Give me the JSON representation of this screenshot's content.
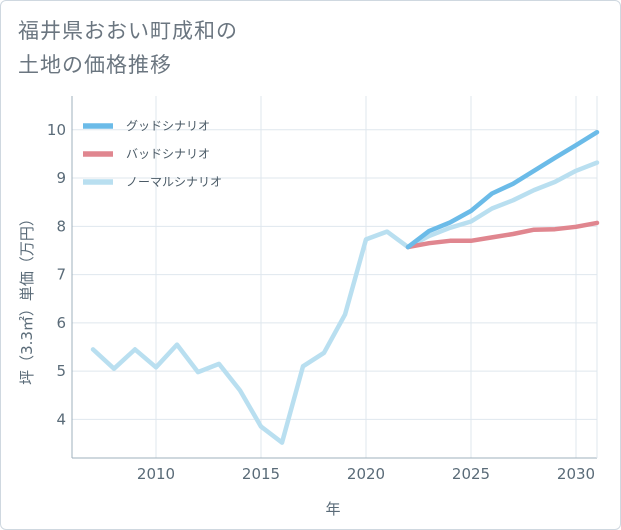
{
  "title_line1": "福井県おおい町成和の",
  "title_line2": "土地の価格推移",
  "chart_data": {
    "type": "line",
    "xlabel": "年",
    "ylabel": "坪（3.3㎡）単価（万円）",
    "xlim": [
      2006,
      2031
    ],
    "ylim": [
      3.2,
      10.7
    ],
    "xticks": [
      2010,
      2015,
      2020,
      2025,
      2030
    ],
    "yticks": [
      4,
      5,
      6,
      7,
      8,
      9,
      10
    ],
    "grid": true,
    "legend_position": "top-left",
    "series": [
      {
        "name": "グッドシナリオ",
        "color": "#6bbbe8",
        "x": [
          2022,
          2023,
          2024,
          2025,
          2026,
          2027,
          2028,
          2029,
          2030,
          2031
        ],
        "y": [
          7.57,
          7.9,
          8.08,
          8.32,
          8.68,
          8.88,
          9.15,
          9.42,
          9.68,
          9.95
        ]
      },
      {
        "name": "バッドシナリオ",
        "color": "#e0868f",
        "x": [
          2022,
          2023,
          2024,
          2025,
          2026,
          2027,
          2028,
          2029,
          2030,
          2031
        ],
        "y": [
          7.57,
          7.65,
          7.7,
          7.7,
          7.77,
          7.84,
          7.93,
          7.94,
          7.99,
          8.07
        ]
      },
      {
        "name": "ノーマルシナリオ",
        "color": "#b9dff0",
        "x": [
          2007,
          2008,
          2009,
          2010,
          2011,
          2012,
          2013,
          2014,
          2015,
          2016,
          2017,
          2018,
          2019,
          2020,
          2021,
          2022,
          2023,
          2024,
          2025,
          2026,
          2027,
          2028,
          2029,
          2030,
          2031
        ],
        "y": [
          5.45,
          5.05,
          5.45,
          5.08,
          5.55,
          4.98,
          5.15,
          4.6,
          3.85,
          3.52,
          5.1,
          5.38,
          6.17,
          7.73,
          7.89,
          7.57,
          7.8,
          7.97,
          8.1,
          8.37,
          8.54,
          8.75,
          8.92,
          9.15,
          9.32
        ]
      }
    ]
  }
}
